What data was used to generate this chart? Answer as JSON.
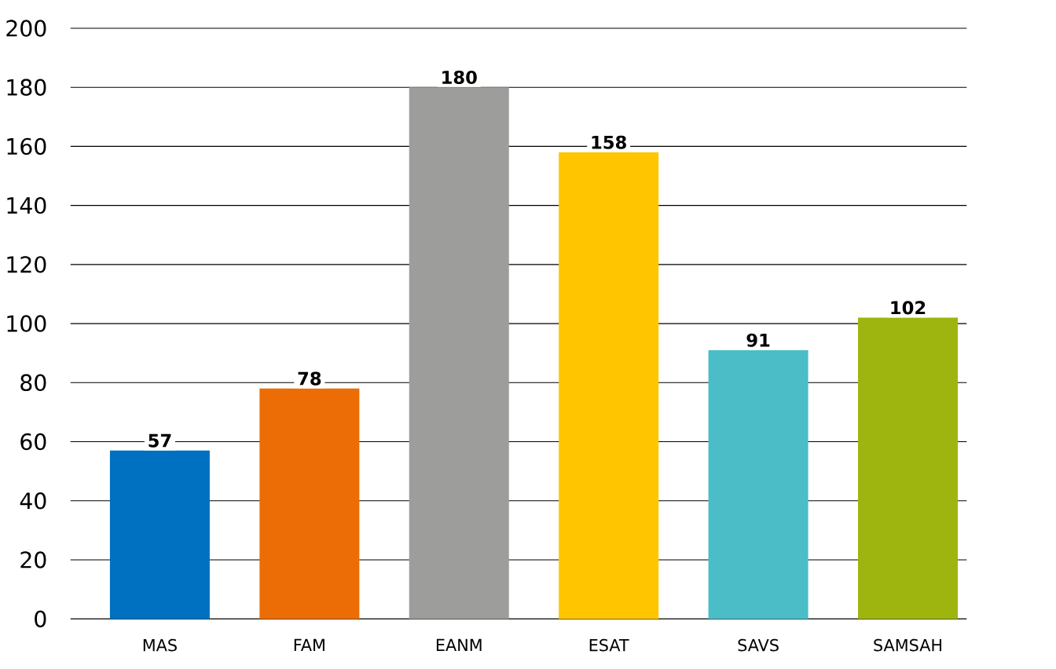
{
  "chart_data": {
    "type": "bar",
    "categories": [
      "MAS",
      "FAM",
      "EANM",
      "ESAT",
      "SAVS",
      "SAMSAH"
    ],
    "values": [
      57,
      78,
      180,
      158,
      91,
      102
    ],
    "colors": [
      "#0070c0",
      "#ec6d06",
      "#9d9d9c",
      "#ffc600",
      "#4bbdc7",
      "#9fb50f"
    ],
    "ylim": [
      0,
      200
    ],
    "yticks": [
      0,
      20,
      40,
      60,
      80,
      100,
      120,
      140,
      160,
      180,
      200
    ],
    "grid": "y",
    "data_labels": true
  }
}
